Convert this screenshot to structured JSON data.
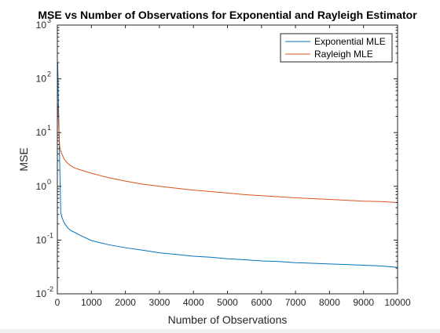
{
  "chart_data": {
    "type": "line",
    "title": "MSE vs Number of Observations for Exponential and Rayleigh Estimator",
    "xlabel": "Number of Observations",
    "ylabel": "MSE",
    "xlim": [
      0,
      10000
    ],
    "ylim": [
      0.01,
      1000
    ],
    "yscale": "log",
    "x_ticks": [
      "0",
      "1000",
      "2000",
      "3000",
      "4000",
      "5000",
      "6000",
      "7000",
      "8000",
      "9000",
      "10000"
    ],
    "y_ticks": [
      {
        "base": "10",
        "exp": "-2"
      },
      {
        "base": "10",
        "exp": "-1"
      },
      {
        "base": "10",
        "exp": "0"
      },
      {
        "base": "10",
        "exp": "1"
      },
      {
        "base": "10",
        "exp": "2"
      },
      {
        "base": "10",
        "exp": "3"
      }
    ],
    "grid": false,
    "legend_position": "top-right",
    "x": [
      10,
      20,
      30,
      50,
      70,
      100,
      150,
      200,
      300,
      400,
      500,
      700,
      1000,
      1500,
      2000,
      2500,
      3000,
      3500,
      4000,
      4500,
      5000,
      5500,
      6000,
      6500,
      7000,
      7500,
      8000,
      8500,
      9000,
      9500,
      10000
    ],
    "series": [
      {
        "name": "Exponential MLE",
        "color": "#0072BD",
        "values": [
          200,
          100,
          40,
          10,
          2.5,
          0.32,
          0.25,
          0.21,
          0.17,
          0.15,
          0.14,
          0.12,
          0.098,
          0.082,
          0.072,
          0.065,
          0.058,
          0.054,
          0.05,
          0.048,
          0.045,
          0.043,
          0.041,
          0.04,
          0.038,
          0.037,
          0.036,
          0.035,
          0.034,
          0.033,
          0.031
        ]
      },
      {
        "name": "Rayleigh MLE",
        "color": "#D95319",
        "values": [
          35,
          25,
          18,
          9,
          5.5,
          4.5,
          3.8,
          3.2,
          2.7,
          2.4,
          2.2,
          2.0,
          1.75,
          1.45,
          1.25,
          1.1,
          1.0,
          0.92,
          0.85,
          0.8,
          0.75,
          0.7,
          0.67,
          0.64,
          0.61,
          0.59,
          0.57,
          0.55,
          0.53,
          0.52,
          0.5
        ]
      }
    ]
  }
}
